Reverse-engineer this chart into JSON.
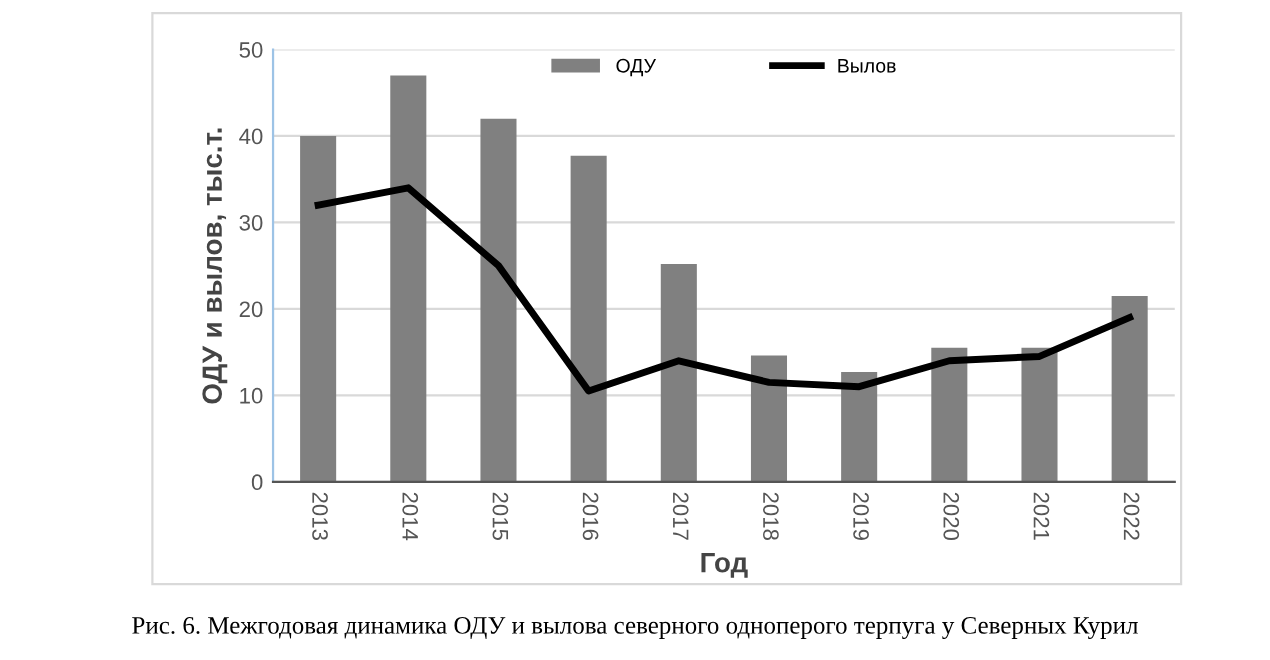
{
  "chart_data": {
    "type": "bar",
    "xlabel": "Год",
    "ylabel": "ОДУ и вылов, тыс.т.",
    "categories": [
      "2013",
      "2014",
      "2015",
      "2016",
      "2017",
      "2018",
      "2019",
      "2020",
      "2021",
      "2022"
    ],
    "series": [
      {
        "name": "ОДУ",
        "color": "#808080",
        "values": [
          40,
          47,
          42,
          37.7,
          25.2,
          14.6,
          12.7,
          15.5,
          15.5,
          21.5
        ]
      },
      {
        "name": "Вылов",
        "type": "line",
        "color": "#000000",
        "values": [
          32,
          34,
          25,
          10.5,
          14,
          11.5,
          11,
          14,
          14.5,
          19
        ]
      }
    ],
    "ylim": [
      0,
      50
    ],
    "yticks": [
      0,
      10,
      20,
      30,
      40,
      50
    ],
    "grid": "y",
    "legend": "top",
    "marker": "none",
    "line_style": "solid",
    "annotations": [
      "Рис. 6. Межгодовая динамика ОДУ и вылова северного одноперого терпуга у Северных Курил"
    ]
  }
}
